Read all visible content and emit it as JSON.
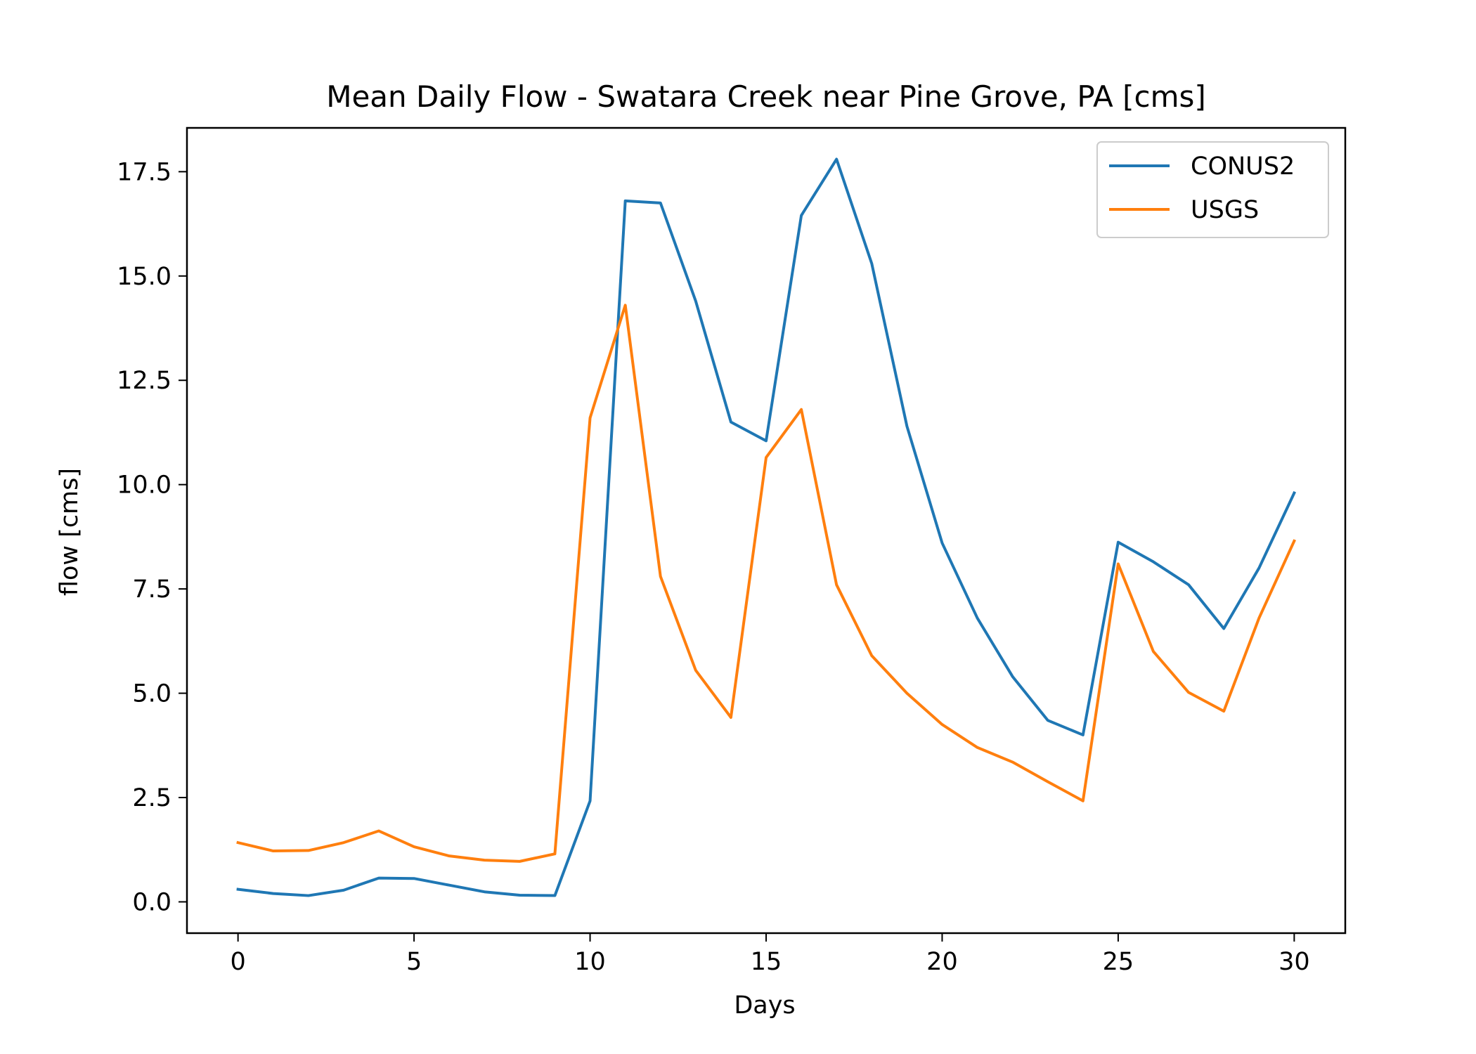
{
  "chart_data": {
    "type": "line",
    "title": "Mean Daily Flow - Swatara Creek near Pine Grove, PA [cms]",
    "xlabel": "Days",
    "ylabel": "flow [cms]",
    "xlim": [
      -1.45,
      31.45
    ],
    "ylim": [
      -0.75,
      18.55
    ],
    "xticks": [
      0,
      5,
      10,
      15,
      20,
      25,
      30
    ],
    "xtick_labels": [
      "0",
      "5",
      "10",
      "15",
      "20",
      "25",
      "30"
    ],
    "yticks": [
      0.0,
      2.5,
      5.0,
      7.5,
      10.0,
      12.5,
      15.0,
      17.5
    ],
    "ytick_labels": [
      "0.0",
      "2.5",
      "5.0",
      "7.5",
      "10.0",
      "12.5",
      "15.0",
      "17.5"
    ],
    "grid": false,
    "legend_position": "top-right",
    "x": [
      0,
      1,
      2,
      3,
      4,
      5,
      6,
      7,
      8,
      9,
      10,
      11,
      12,
      13,
      14,
      15,
      16,
      17,
      18,
      19,
      20,
      21,
      22,
      23,
      24,
      25,
      26,
      27,
      28,
      29,
      30
    ],
    "series": [
      {
        "name": "CONUS2",
        "color": "#1f77b4",
        "values": [
          0.3,
          0.2,
          0.15,
          0.28,
          0.57,
          0.56,
          0.4,
          0.24,
          0.16,
          0.15,
          2.42,
          16.8,
          16.75,
          14.4,
          11.5,
          11.05,
          16.45,
          17.8,
          15.3,
          11.4,
          8.6,
          6.8,
          5.4,
          4.35,
          4.0,
          8.62,
          8.15,
          7.6,
          6.55,
          8.0,
          9.8
        ]
      },
      {
        "name": "USGS",
        "color": "#ff7f0e",
        "values": [
          1.42,
          1.22,
          1.23,
          1.42,
          1.7,
          1.32,
          1.1,
          1.0,
          0.97,
          1.15,
          11.6,
          14.3,
          7.8,
          5.55,
          4.42,
          10.65,
          11.8,
          7.6,
          5.9,
          5.0,
          4.25,
          3.7,
          3.35,
          2.88,
          2.42,
          8.1,
          6.0,
          5.02,
          4.57,
          6.8,
          8.65
        ]
      }
    ]
  }
}
